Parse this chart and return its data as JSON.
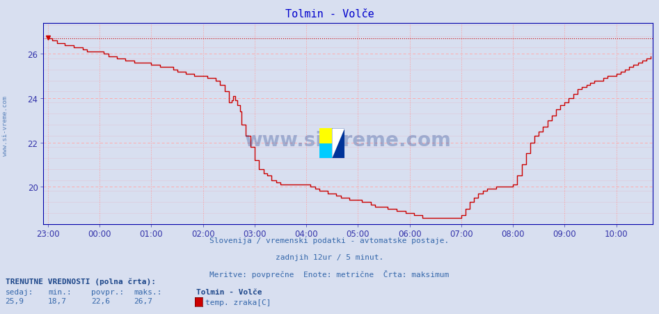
{
  "title": "Tolmin - Volče",
  "title_color": "#0000cc",
  "bg_color": "#d8dff0",
  "plot_bg_color": "#d8dff0",
  "line_color": "#cc0000",
  "max_line_color": "#cc0000",
  "max_value": 26.7,
  "min_value": 18.7,
  "avg_value": 22.6,
  "current_value": 25.9,
  "ylabel_color": "#3333aa",
  "xlabel_color": "#3333aa",
  "yticks": [
    20,
    22,
    24,
    26
  ],
  "ylim": [
    18.3,
    27.4
  ],
  "xtick_labels": [
    "23:00",
    "00:00",
    "01:00",
    "02:00",
    "03:00",
    "04:00",
    "05:00",
    "06:00",
    "07:00",
    "08:00",
    "09:00",
    "10:00"
  ],
  "footer_line1": "Slovenija / vremenski podatki - avtomatske postaje.",
  "footer_line2": "zadnjih 12ur / 5 minut.",
  "footer_line3": "Meritve: povprečne  Enote: metrične  Črta: maksimum",
  "footer_color": "#3366aa",
  "legend_station": "Tolmin - Volče",
  "legend_label": "temp. zraka[C]",
  "legend_color": "#cc0000",
  "bottom_label1": "TRENUTNE VREDNOSTI (polna črta):",
  "bottom_cols": [
    "sedaj:",
    "min.:",
    "povpr.:",
    "maks.:"
  ],
  "bottom_vals": [
    "25,9",
    "18,7",
    "22,6",
    "26,7"
  ],
  "watermark": "www.si-vreme.com",
  "side_text": "www.si-vreme.com",
  "axis_color": "#0000aa",
  "grid_v_color": "#ff9999",
  "grid_h_color": "#ffaaaa",
  "grid_h_minor_color": "#ddccdd"
}
